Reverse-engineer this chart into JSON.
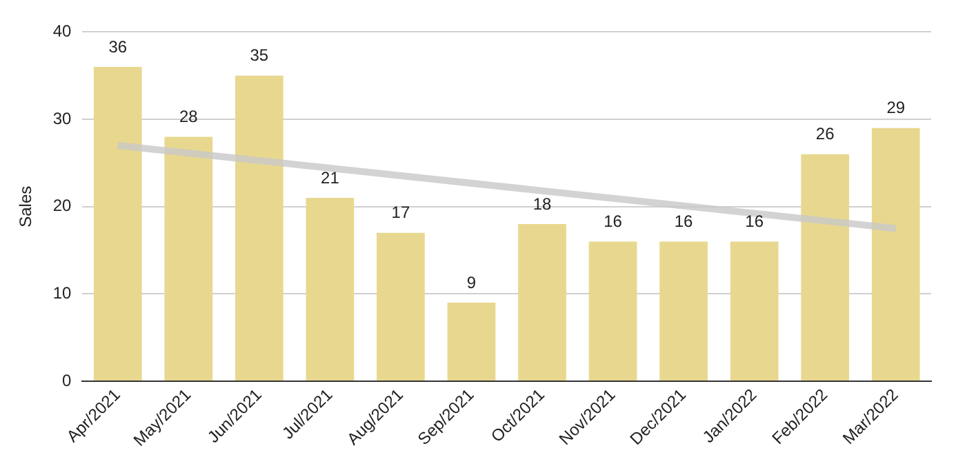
{
  "chart_data": {
    "type": "bar",
    "ylabel": "Sales",
    "categories": [
      "Apr/2021",
      "May/2021",
      "Jun/2021",
      "Jul/2021",
      "Aug/2021",
      "Sep/2021",
      "Oct/2021",
      "Nov/2021",
      "Dec/2021",
      "Jan/2022",
      "Feb/2022",
      "Mar/2022"
    ],
    "series": [
      {
        "color": "#e8d88f",
        "values": [
          36,
          28,
          35,
          21,
          17,
          9,
          18,
          16,
          16,
          16,
          26,
          29
        ],
        "value_labels": [
          "36",
          "28",
          "35",
          "21",
          "17",
          "9",
          "18",
          "16",
          "16",
          "16",
          "26",
          "29"
        ]
      },
      {
        "type": "line",
        "color": "#c8c8c8",
        "marker": "none",
        "x": [
          "Apr/2021",
          "Mar/2022"
        ],
        "values": [
          27,
          17.5
        ]
      }
    ],
    "ylim": [
      0,
      40
    ],
    "yticks": [
      0,
      10,
      20,
      30,
      40
    ],
    "grid": "y"
  }
}
